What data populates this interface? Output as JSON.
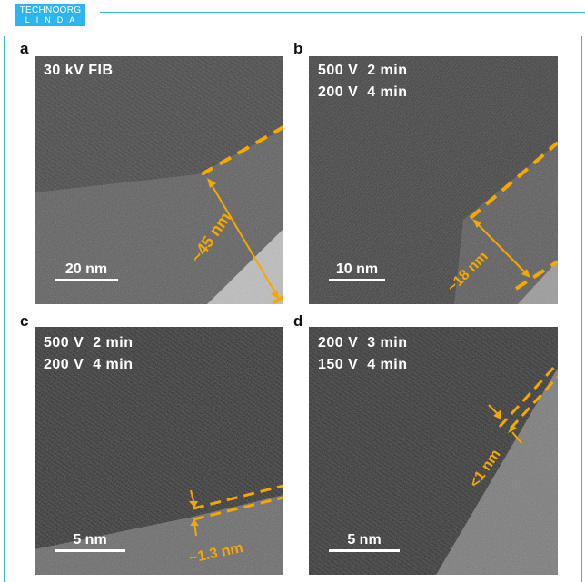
{
  "logo": {
    "line1": "TECHNOORG",
    "line2": "LINDA"
  },
  "accent": "#2bb6ee",
  "annotation_color": "#f5a800",
  "panels": [
    {
      "label": "a",
      "conditions": [
        "30 kV FIB"
      ],
      "scale_bar": "20 nm",
      "thickness": "~45 nm"
    },
    {
      "label": "b",
      "conditions": [
        "500 V  2 min",
        "200 V  4 min"
      ],
      "scale_bar": "10 nm",
      "thickness": "~18 nm"
    },
    {
      "label": "c",
      "conditions": [
        "500 V  2 min",
        "200 V  4 min"
      ],
      "scale_bar": "5 nm",
      "thickness": "~1.3 nm"
    },
    {
      "label": "d",
      "conditions": [
        "200 V  3 min",
        "150 V  4 min"
      ],
      "scale_bar": "5 nm",
      "thickness": "<1 nm"
    }
  ]
}
